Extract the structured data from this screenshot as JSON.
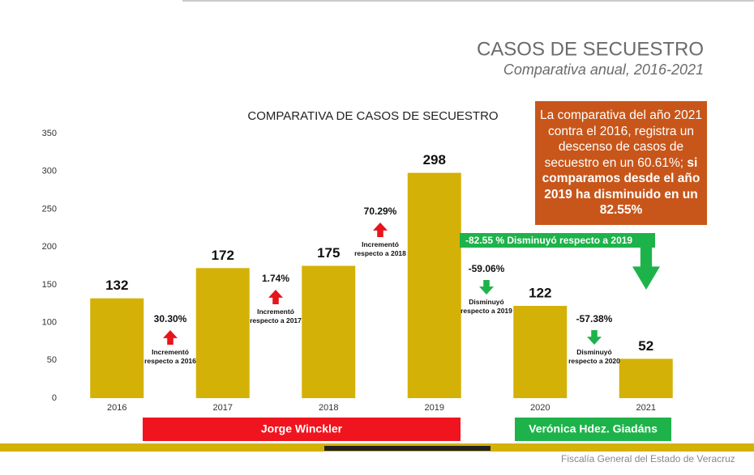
{
  "header": {
    "title": "CASOS DE SECUESTRO",
    "subtitle": "Comparativa anual, 2016-2021"
  },
  "chart_data": {
    "type": "bar",
    "title": "COMPARATIVA DE CASOS DE SECUESTRO",
    "categories": [
      "2016",
      "2017",
      "2018",
      "2019",
      "2020",
      "2021"
    ],
    "values": [
      132,
      172,
      175,
      298,
      122,
      52
    ],
    "color": "#d4b106",
    "ylim": [
      0,
      350
    ],
    "yticks": [
      0,
      50,
      100,
      150,
      200,
      250,
      300,
      350
    ],
    "annotations": [
      {
        "text": "30.30%",
        "note": "Incrementó respecto a 2016",
        "arrow": "up",
        "color": "#e8141b"
      },
      {
        "text": "1.74%",
        "note": "Incrementó respecto a 2017",
        "arrow": "up",
        "color": "#e8141b"
      },
      {
        "text": "70.29%",
        "note": "Incrementó respecto a 2018",
        "arrow": "up",
        "color": "#e8141b"
      },
      {
        "text": "-59.06%",
        "note": "Disminuyó respecto a 2019",
        "arrow": "down",
        "color": "#1db34a"
      },
      {
        "text": "-57.38%",
        "note": "Disminuyó respecto a 2020",
        "arrow": "down",
        "color": "#1db34a"
      }
    ],
    "summary": {
      "text": "-82.55 % Disminuyó respecto a 2019",
      "arrow": "down",
      "color": "#1db34a"
    }
  },
  "callout": {
    "text": "La comparativa del año 2021 contra el 2016, registra un descenso de casos de secuestro en un 60.61%;",
    "emphasis": "si comparamos desde el año 2019 ha disminuido en un 82.55%",
    "color": "#c8561a"
  },
  "officials": [
    {
      "name": "Jorge Winckler",
      "color": "#f0141e"
    },
    {
      "name": "Verónica Hdez. Giadáns",
      "color": "#1db34a"
    }
  ],
  "footer": "Fiscalía General del Estado de Veracruz"
}
